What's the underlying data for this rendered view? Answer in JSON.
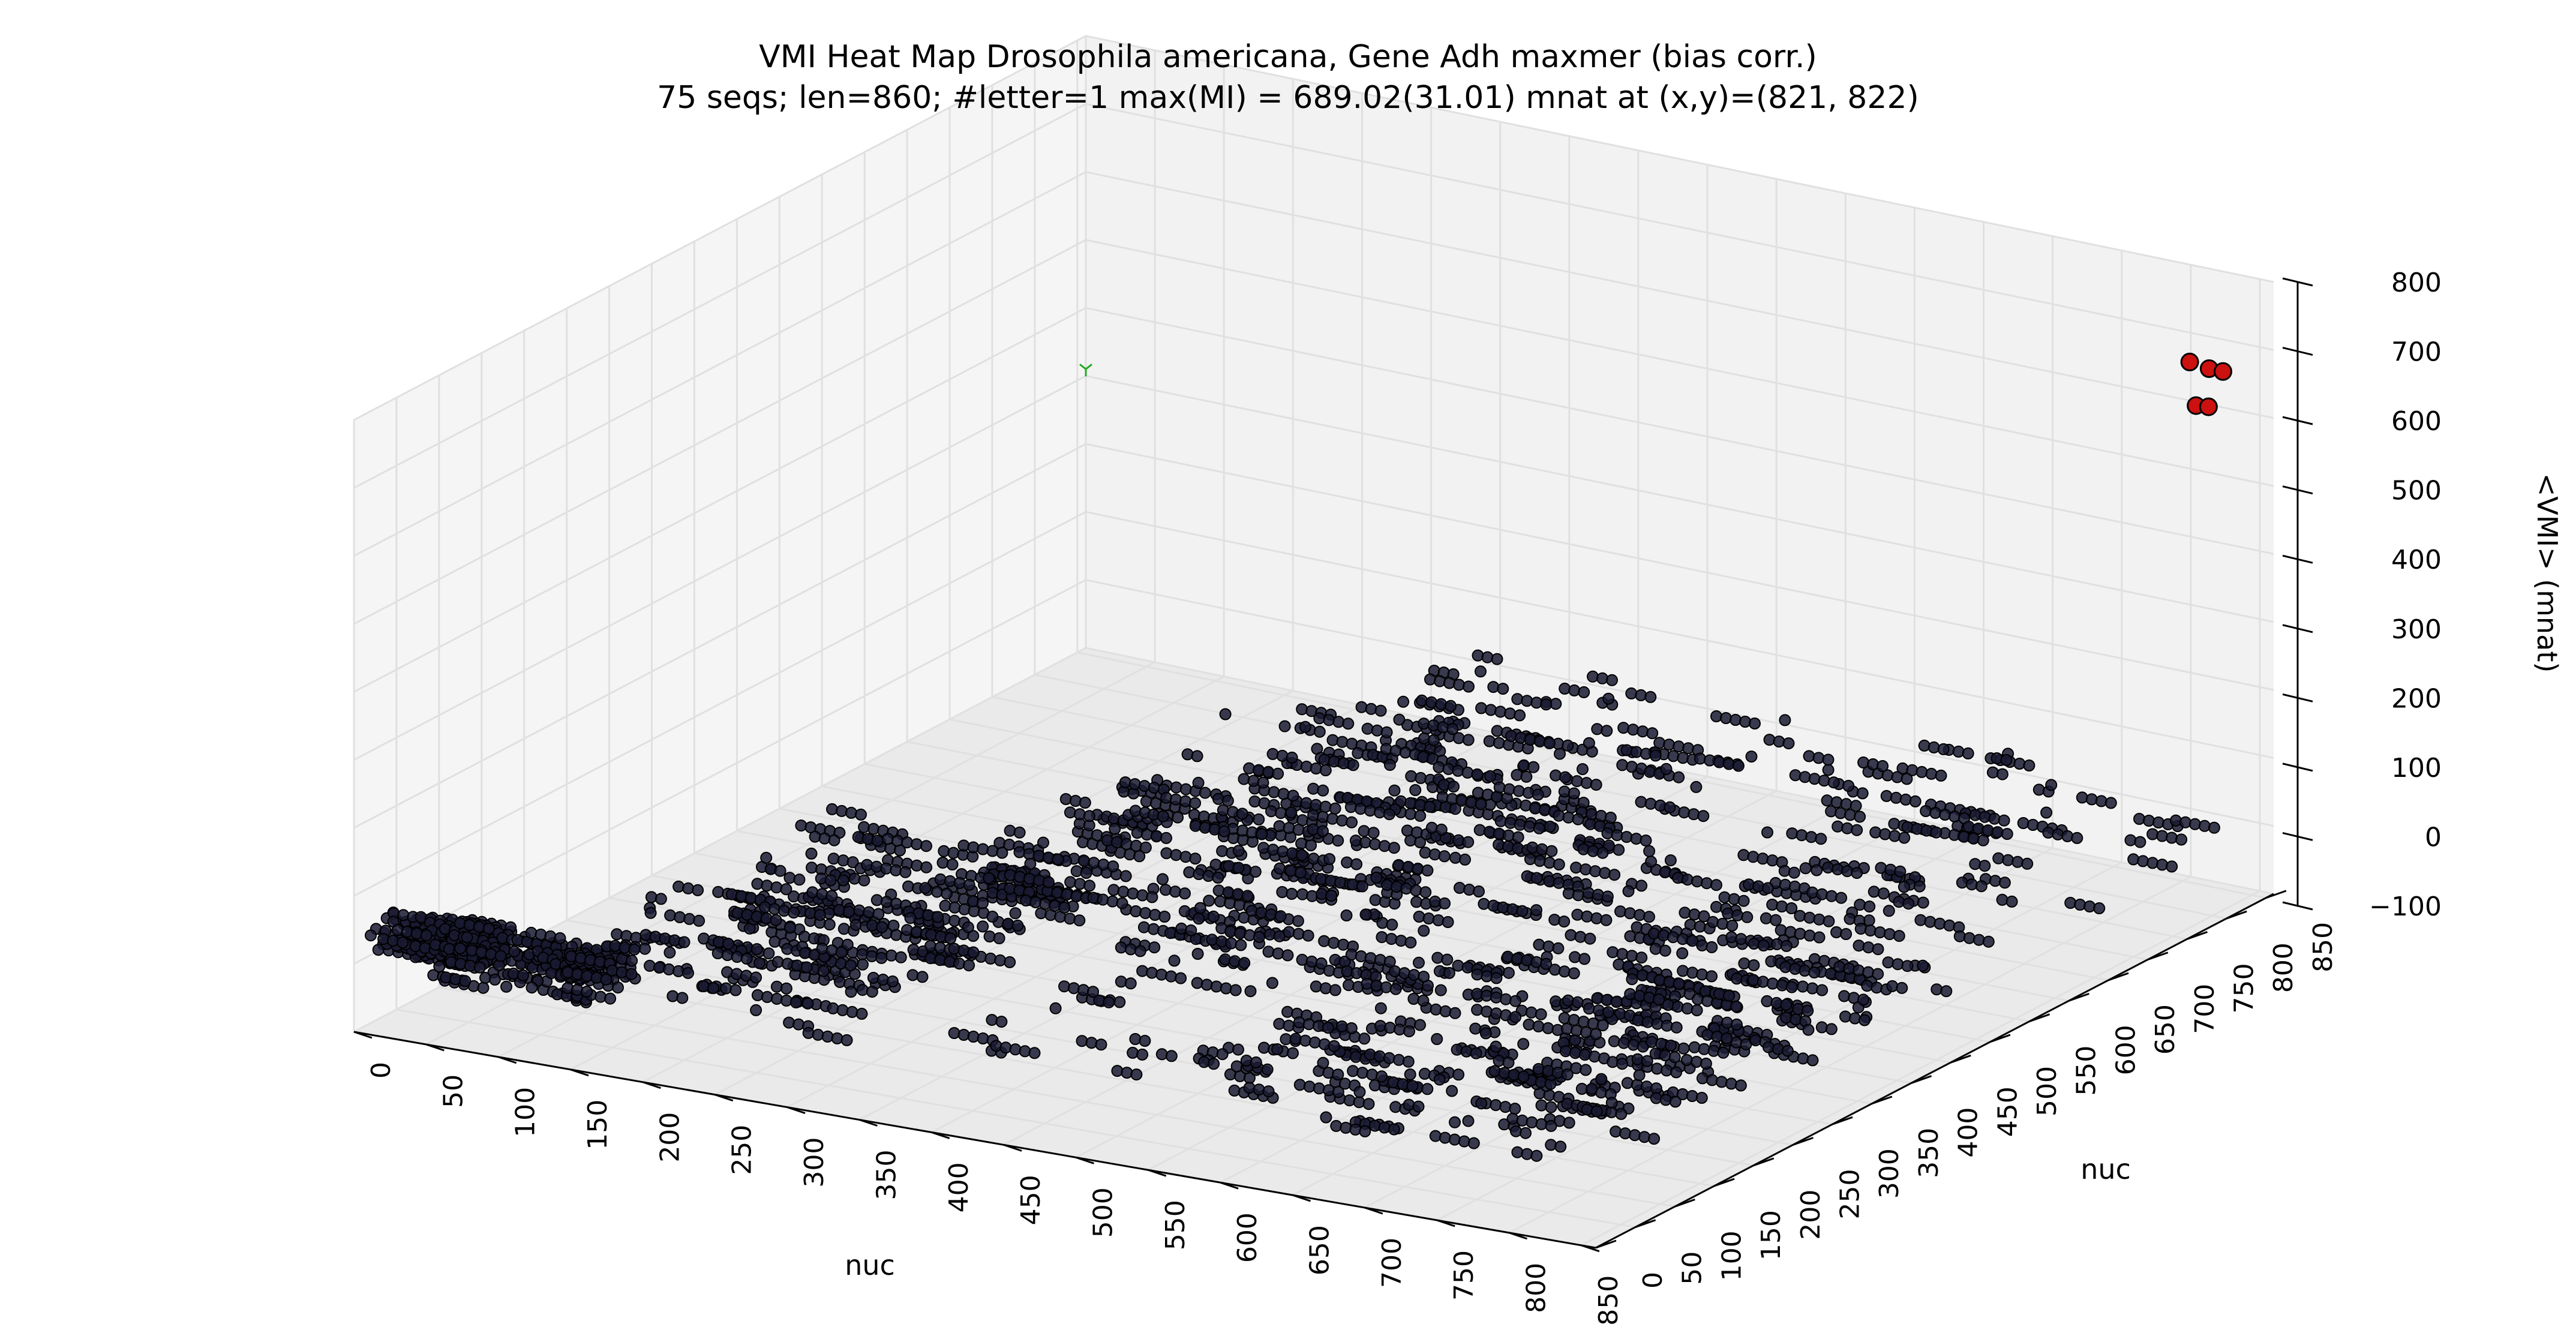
{
  "chart_data": {
    "type": "scatter",
    "projection": "3d",
    "title": "VMI Heat Map Drosophila americana, Gene Adh maxmer (bias corr.)",
    "subtitle": "75 seqs; len=860; #letter=1 max(MI) = 689.02(31.01) mnat at (x,y)=(821, 822)",
    "xlabel": "nuc",
    "ylabel": "nuc",
    "zlabel": "<VMI> (mnat)",
    "xlim": [
      0,
      860
    ],
    "ylim": [
      0,
      860
    ],
    "zlim": [
      -100,
      800
    ],
    "x_ticks": [
      "0",
      "50",
      "100",
      "150",
      "200",
      "250",
      "300",
      "350",
      "400",
      "450",
      "500",
      "550",
      "600",
      "650",
      "700",
      "750",
      "800",
      "850"
    ],
    "y_ticks": [
      "0",
      "50",
      "100",
      "150",
      "200",
      "250",
      "300",
      "350",
      "400",
      "450",
      "500",
      "550",
      "600",
      "650",
      "700",
      "750",
      "800",
      "850"
    ],
    "z_ticks": [
      "−100",
      "0",
      "100",
      "200",
      "300",
      "400",
      "500",
      "600",
      "700",
      "800"
    ],
    "grid": true,
    "series": [
      {
        "color": "#1a1a33",
        "clusters": [
          {
            "x": [
              10,
              80
            ],
            "y": [
              0,
              20
            ],
            "z": 50
          },
          {
            "x": [
              30,
              140
            ],
            "y": [
              30,
              80
            ],
            "z": 0
          },
          {
            "x": [
              120,
              320
            ],
            "y": [
              0,
              200
            ],
            "z": 30
          },
          {
            "x": [
              160,
              360
            ],
            "y": [
              80,
              300
            ],
            "z": 80
          },
          {
            "x": [
              280,
              500
            ],
            "y": [
              150,
              420
            ],
            "z": 100
          },
          {
            "x": [
              300,
              560
            ],
            "y": [
              300,
              600
            ],
            "z": 120
          },
          {
            "x": [
              360,
              620
            ],
            "y": [
              380,
              700
            ],
            "z": 140
          },
          {
            "x": [
              400,
              700
            ],
            "y": [
              0,
              380
            ],
            "z": 40
          },
          {
            "x": [
              460,
              780
            ],
            "y": [
              200,
              560
            ],
            "z": 60
          },
          {
            "x": [
              560,
              820
            ],
            "y": [
              0,
              300
            ],
            "z": 20
          },
          {
            "x": [
              600,
              860
            ],
            "y": [
              400,
              820
            ],
            "z": 50
          },
          {
            "x": [
              700,
              860
            ],
            "y": [
              100,
              450
            ],
            "z": 30
          }
        ]
      },
      {
        "color": "#cc1111",
        "points": [
          {
            "x": 821,
            "y": 822,
            "z": 689
          },
          {
            "x": 835,
            "y": 822,
            "z": 685
          },
          {
            "x": 845,
            "y": 822,
            "z": 685
          },
          {
            "x": 821,
            "y": 830,
            "z": 620
          },
          {
            "x": 830,
            "y": 830,
            "z": 622
          }
        ]
      },
      {
        "color": "#22aa22",
        "marker": "tri",
        "points": [
          {
            "x": 0,
            "y": 860,
            "z": 310
          }
        ]
      }
    ]
  }
}
